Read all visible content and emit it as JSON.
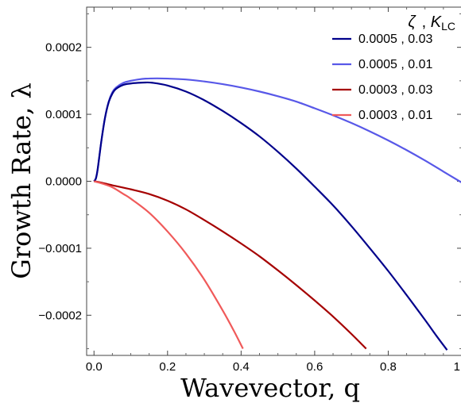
{
  "chart_data": {
    "type": "line",
    "title": "",
    "xlabel": "Wavevector, q",
    "ylabel": "Growth Rate, λ",
    "xlim": [
      -0.02,
      1.0
    ],
    "ylim": [
      -0.00026,
      0.00026
    ],
    "xticks": [
      0.0,
      0.2,
      0.4,
      0.6,
      0.8,
      1.0
    ],
    "xtick_labels": [
      "0.0",
      "0.2",
      "0.4",
      "0.6",
      "0.8",
      "1.0"
    ],
    "yticks": [
      0.0002,
      0.0001,
      0.0,
      -0.0001,
      -0.0002
    ],
    "ytick_labels": [
      "0.0002",
      "0.0001",
      "0.0000",
      "−0.0001",
      "−0.0002"
    ],
    "grid": false,
    "legend": {
      "title_symbol": "ζ",
      "title_sep": ", ",
      "title_k": "K",
      "title_k_sub": "LC",
      "placement": "top-right"
    },
    "series": [
      {
        "name": "0.0005 , 0.03",
        "color": "#00008b",
        "x": [
          0.0,
          0.005,
          0.01,
          0.02,
          0.03,
          0.04,
          0.05,
          0.06,
          0.08,
          0.1,
          0.12,
          0.14,
          0.16,
          0.2,
          0.25,
          0.3,
          0.35,
          0.4,
          0.45,
          0.5,
          0.55,
          0.6,
          0.65,
          0.7,
          0.75,
          0.8,
          0.85,
          0.9,
          0.93,
          0.96
        ],
        "y": [
          0.0,
          4e-06,
          1.8e-05,
          6e-05,
          9.5e-05,
          0.000118,
          0.000131,
          0.000138,
          0.000144,
          0.000146,
          0.000147,
          0.0001475,
          0.000147,
          0.000143,
          0.000134,
          0.000121,
          0.000105,
          8.7e-05,
          6.7e-05,
          4.4e-05,
          1.9e-05,
          -8e-06,
          -3.6e-05,
          -6.7e-05,
          -0.0001,
          -0.000134,
          -0.00017,
          -0.000207,
          -0.00023,
          -0.000252
        ]
      },
      {
        "name": "0.0005 , 0.01",
        "color": "#5858e8",
        "x": [
          0.0,
          0.005,
          0.01,
          0.02,
          0.03,
          0.04,
          0.05,
          0.06,
          0.08,
          0.1,
          0.12,
          0.14,
          0.17,
          0.2,
          0.25,
          0.3,
          0.35,
          0.4,
          0.45,
          0.5,
          0.55,
          0.6,
          0.65,
          0.7,
          0.75,
          0.8,
          0.85,
          0.9,
          0.95,
          1.0
        ],
        "y": [
          0.0,
          4e-06,
          1.8e-05,
          6e-05,
          9.5e-05,
          0.000119,
          0.000133,
          0.00014,
          0.000147,
          0.00015,
          0.000152,
          0.0001532,
          0.0001536,
          0.0001533,
          0.000152,
          0.000149,
          0.000145,
          0.00014,
          0.000134,
          0.000127,
          0.000119,
          0.000109,
          9.85e-05,
          8.7e-05,
          7.45e-05,
          6.1e-05,
          4.65e-05,
          3.1e-05,
          1.45e-05,
          -2e-06
        ]
      },
      {
        "name": "0.0003 , 0.03",
        "color": "#a50000",
        "x": [
          0.0,
          0.02,
          0.05,
          0.1,
          0.15,
          0.2,
          0.25,
          0.3,
          0.35,
          0.4,
          0.45,
          0.5,
          0.55,
          0.6,
          0.65,
          0.7,
          0.74
        ],
        "y": [
          0.0,
          -2e-06,
          -6e-06,
          -1.2e-05,
          -1.9e-05,
          -2.9e-05,
          -4.2e-05,
          -5.8e-05,
          -7.5e-05,
          -9.3e-05,
          -0.000112,
          -0.000133,
          -0.000155,
          -0.000178,
          -0.000202,
          -0.000228,
          -0.00025
        ]
      },
      {
        "name": "0.0003 , 0.01",
        "color": "#f05a5a",
        "x": [
          0.0,
          0.02,
          0.05,
          0.08,
          0.1,
          0.15,
          0.2,
          0.25,
          0.3,
          0.35,
          0.38,
          0.405
        ],
        "y": [
          0.0,
          -3e-06,
          -9e-06,
          -1.9e-05,
          -2.6e-05,
          -4.7e-05,
          -7.5e-05,
          -0.000108,
          -0.000147,
          -0.000193,
          -0.000223,
          -0.00025
        ]
      }
    ]
  }
}
